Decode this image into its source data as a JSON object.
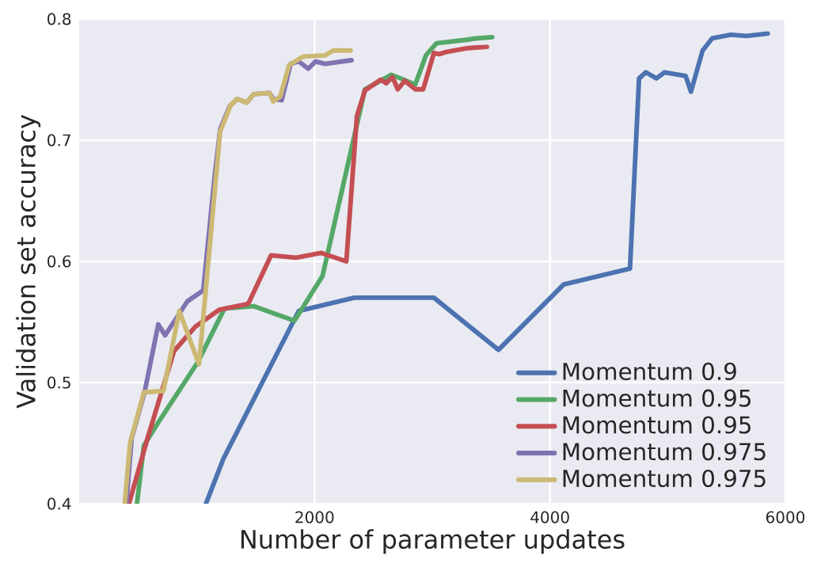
{
  "chart_data": {
    "type": "line",
    "xlabel": "Number of parameter updates",
    "ylabel": "Validation set accuracy",
    "xlim": [
      0,
      6000
    ],
    "ylim": [
      0.4,
      0.8
    ],
    "xticks": [
      2000,
      4000,
      6000
    ],
    "yticks": [
      0.4,
      0.5,
      0.6,
      0.7,
      0.8
    ],
    "grid": true,
    "legend": "bottom right",
    "marker": "none",
    "line_style": "solid",
    "series": [
      {
        "name": "Momentum 0.9",
        "color": "#4c72b0",
        "x": [
          1077,
          1225,
          1865,
          2338,
          3014,
          3563,
          4117,
          4680,
          4757,
          4815,
          4905,
          4973,
          5153,
          5198,
          5297,
          5378,
          5536,
          5671,
          5851
        ],
        "values": [
          0.4,
          0.437,
          0.559,
          0.57,
          0.57,
          0.527,
          0.581,
          0.594,
          0.751,
          0.756,
          0.751,
          0.756,
          0.753,
          0.74,
          0.774,
          0.784,
          0.787,
          0.786,
          0.788
        ]
      },
      {
        "name": "Momentum 0.95",
        "color": "#55a868",
        "x": [
          491,
          550,
          672,
          1009,
          1234,
          1482,
          1829,
          2068,
          2428,
          2653,
          2856,
          2946,
          3036,
          3306,
          3374,
          3509
        ],
        "values": [
          0.4,
          0.448,
          0.467,
          0.517,
          0.561,
          0.563,
          0.551,
          0.588,
          0.742,
          0.754,
          0.746,
          0.77,
          0.78,
          0.783,
          0.784,
          0.785
        ]
      },
      {
        "name": "Momentum 0.95",
        "color": "#c44e52",
        "x": [
          423,
          581,
          806,
          986,
          1189,
          1437,
          1631,
          1842,
          2054,
          2270,
          2360,
          2428,
          2563,
          2608,
          2662,
          2707,
          2766,
          2856,
          2923,
          3014,
          3059,
          3126,
          3306,
          3464
        ],
        "values": [
          0.4,
          0.454,
          0.526,
          0.546,
          0.56,
          0.565,
          0.605,
          0.603,
          0.607,
          0.6,
          0.72,
          0.741,
          0.75,
          0.747,
          0.752,
          0.742,
          0.749,
          0.742,
          0.742,
          0.772,
          0.771,
          0.773,
          0.776,
          0.777
        ]
      },
      {
        "name": "Momentum 0.975",
        "color": "#8172b2",
        "x": [
          401,
          446,
          558,
          672,
          730,
          919,
          1054,
          1153,
          1198,
          1279,
          1343,
          1423,
          1482,
          1617,
          1649,
          1721,
          1797,
          1865,
          1946,
          2009,
          2090,
          2315
        ],
        "values": [
          0.4,
          0.454,
          0.493,
          0.548,
          0.539,
          0.567,
          0.576,
          0.672,
          0.709,
          0.728,
          0.734,
          0.731,
          0.738,
          0.739,
          0.734,
          0.733,
          0.763,
          0.765,
          0.759,
          0.765,
          0.763,
          0.766
        ]
      },
      {
        "name": "Momentum 0.975",
        "color": "#ccb974",
        "x": [
          387,
          432,
          550,
          716,
          851,
          1018,
          1198,
          1288,
          1343,
          1423,
          1482,
          1617,
          1649,
          1708,
          1784,
          1901,
          2090,
          2158,
          2225,
          2306
        ],
        "values": [
          0.4,
          0.45,
          0.492,
          0.493,
          0.559,
          0.515,
          0.707,
          0.729,
          0.734,
          0.731,
          0.738,
          0.739,
          0.732,
          0.736,
          0.762,
          0.769,
          0.77,
          0.774,
          0.774,
          0.774
        ]
      }
    ]
  }
}
